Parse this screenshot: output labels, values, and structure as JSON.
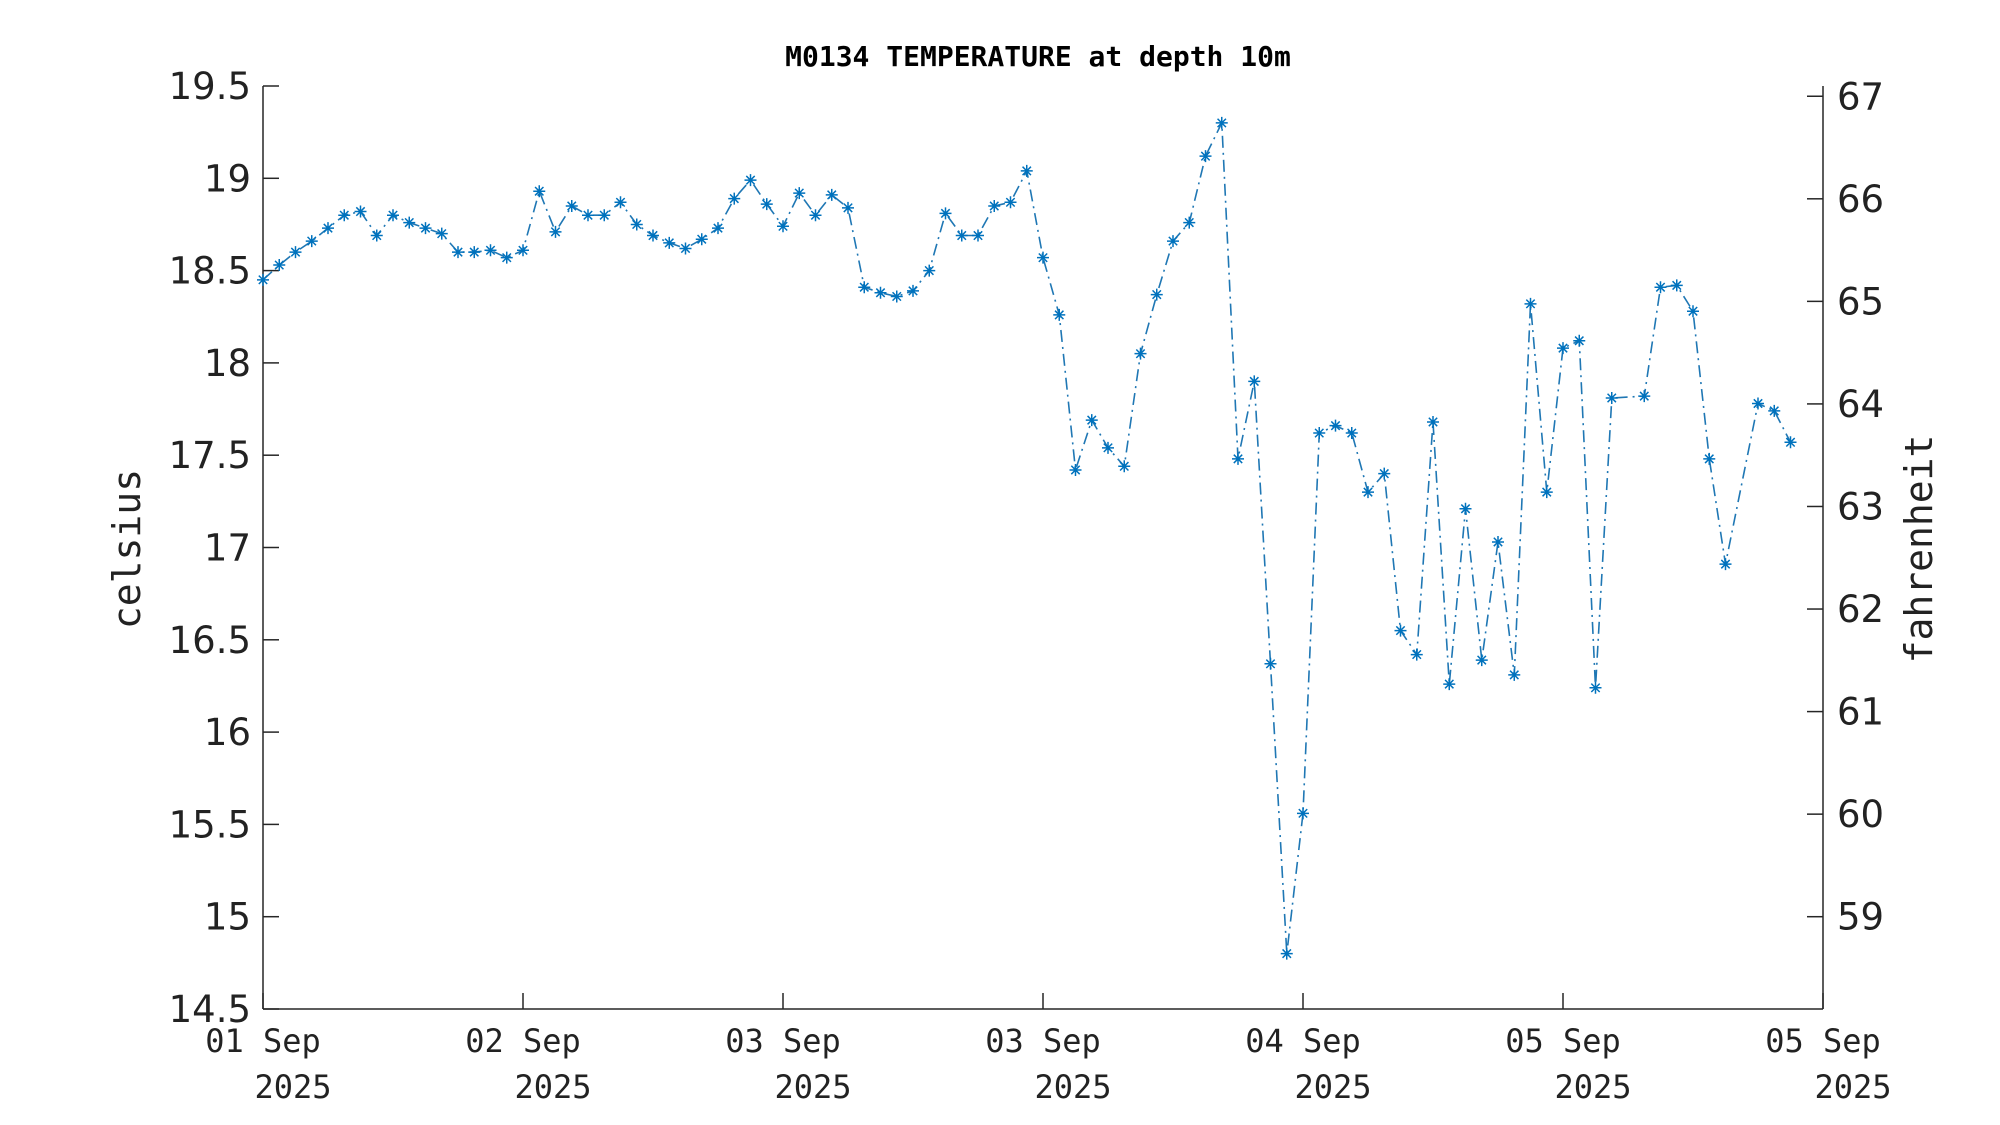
{
  "chart_data": {
    "type": "line",
    "title": "M0134 TEMPERATURE at depth 10m",
    "ylabel": "celsius",
    "ylabel_right": "fahrenheit",
    "xlabel": "",
    "ylim": [
      14.5,
      19.5
    ],
    "ylim_right_fahrenheit": [
      58.1,
      67.1
    ],
    "yticks": [
      {
        "value": 14.5,
        "label": "14.5"
      },
      {
        "value": 15,
        "label": "15"
      },
      {
        "value": 15.5,
        "label": "15.5"
      },
      {
        "value": 16,
        "label": "16"
      },
      {
        "value": 16.5,
        "label": "16.5"
      },
      {
        "value": 17,
        "label": "17"
      },
      {
        "value": 17.5,
        "label": "17.5"
      },
      {
        "value": 18,
        "label": "18"
      },
      {
        "value": 18.5,
        "label": "18.5"
      },
      {
        "value": 19,
        "label": "19"
      },
      {
        "value": 19.5,
        "label": "19.5"
      }
    ],
    "yticks_right": [
      {
        "value": 59,
        "label": "59"
      },
      {
        "value": 60,
        "label": "60"
      },
      {
        "value": 61,
        "label": "61"
      },
      {
        "value": 62,
        "label": "62"
      },
      {
        "value": 63,
        "label": "63"
      },
      {
        "value": 64,
        "label": "64"
      },
      {
        "value": 65,
        "label": "65"
      },
      {
        "value": 66,
        "label": "66"
      },
      {
        "value": 67,
        "label": "67"
      }
    ],
    "xlim": [
      0,
      96
    ],
    "xticks": [
      {
        "value": 0,
        "day": "01 Sep",
        "year": "2025"
      },
      {
        "value": 16,
        "day": "02 Sep",
        "year": "2025"
      },
      {
        "value": 32,
        "day": "03 Sep",
        "year": "2025"
      },
      {
        "value": 48,
        "day": "03 Sep",
        "year": "2025"
      },
      {
        "value": 64,
        "day": "04 Sep",
        "year": "2025"
      },
      {
        "value": 80,
        "day": "05 Sep",
        "year": "2025"
      },
      {
        "value": 96,
        "day": "05 Sep",
        "year": "2025"
      }
    ],
    "series": [
      {
        "color": "#1f77b4",
        "marker": "asterisk",
        "line_style": "dash-dot",
        "points": [
          [
            0,
            18.45
          ],
          [
            1,
            18.53
          ],
          [
            2,
            18.6
          ],
          [
            3,
            18.66
          ],
          [
            4,
            18.73
          ],
          [
            5,
            18.8
          ],
          [
            6,
            18.82
          ],
          [
            7,
            18.69
          ],
          [
            8,
            18.8
          ],
          [
            9,
            18.76
          ],
          [
            10,
            18.73
          ],
          [
            11,
            18.7
          ],
          [
            12,
            18.6
          ],
          [
            13,
            18.6
          ],
          [
            14,
            18.61
          ],
          [
            15,
            18.57
          ],
          [
            16,
            18.61
          ],
          [
            17,
            18.93
          ],
          [
            18,
            18.71
          ],
          [
            19,
            18.85
          ],
          [
            20,
            18.8
          ],
          [
            21,
            18.8
          ],
          [
            22,
            18.87
          ],
          [
            23,
            18.75
          ],
          [
            24,
            18.69
          ],
          [
            25,
            18.65
          ],
          [
            26,
            18.62
          ],
          [
            27,
            18.67
          ],
          [
            28,
            18.73
          ],
          [
            29,
            18.89
          ],
          [
            30,
            18.99
          ],
          [
            31,
            18.86
          ],
          [
            32,
            18.74
          ],
          [
            33,
            18.92
          ],
          [
            34,
            18.8
          ],
          [
            35,
            18.91
          ],
          [
            36,
            18.84
          ],
          [
            37,
            18.41
          ],
          [
            38,
            18.38
          ],
          [
            39,
            18.36
          ],
          [
            40,
            18.39
          ],
          [
            41,
            18.5
          ],
          [
            42,
            18.81
          ],
          [
            43,
            18.69
          ],
          [
            44,
            18.69
          ],
          [
            45,
            18.85
          ],
          [
            46,
            18.87
          ],
          [
            47,
            19.04
          ],
          [
            48,
            18.57
          ],
          [
            49,
            18.26
          ],
          [
            50,
            17.42
          ],
          [
            51,
            17.69
          ],
          [
            52,
            17.54
          ],
          [
            53,
            17.44
          ],
          [
            54,
            18.05
          ],
          [
            55,
            18.37
          ],
          [
            56,
            18.66
          ],
          [
            57,
            18.76
          ],
          [
            58,
            19.12
          ],
          [
            59,
            19.3
          ],
          [
            60,
            17.48
          ],
          [
            61,
            17.9
          ],
          [
            62,
            16.37
          ],
          [
            63,
            14.8
          ],
          [
            64,
            15.56
          ],
          [
            65,
            17.62
          ],
          [
            66,
            17.66
          ],
          [
            67,
            17.62
          ],
          [
            68,
            17.3
          ],
          [
            69,
            17.4
          ],
          [
            70,
            16.55
          ],
          [
            71,
            16.42
          ],
          [
            72,
            17.68
          ],
          [
            73,
            16.26
          ],
          [
            74,
            17.21
          ],
          [
            75,
            16.39
          ],
          [
            76,
            17.03
          ],
          [
            77,
            16.31
          ],
          [
            78,
            18.32
          ],
          [
            79,
            17.3
          ],
          [
            80,
            18.08
          ],
          [
            81,
            18.12
          ],
          [
            82,
            16.24
          ],
          [
            83,
            17.81
          ],
          [
            85,
            17.82
          ],
          [
            86,
            18.41
          ],
          [
            87,
            18.42
          ],
          [
            88,
            18.28
          ],
          [
            89,
            17.48
          ],
          [
            90,
            16.91
          ],
          [
            92,
            17.78
          ],
          [
            93,
            17.74
          ],
          [
            94,
            17.57
          ]
        ]
      }
    ]
  }
}
